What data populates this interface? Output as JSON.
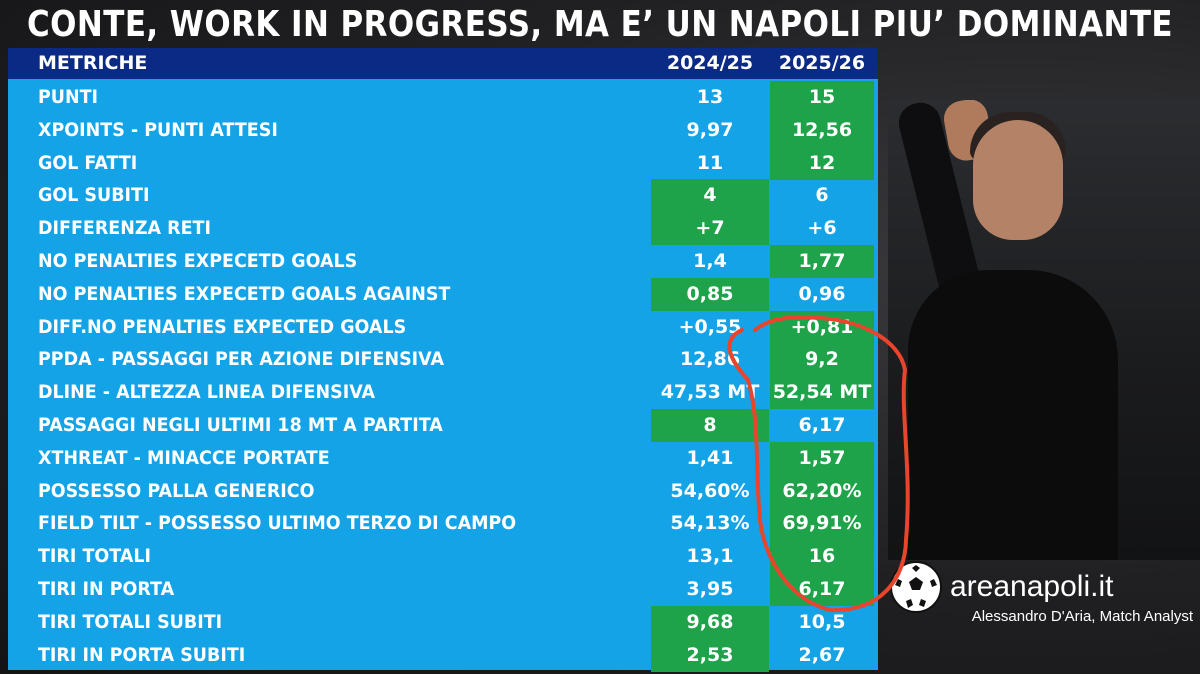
{
  "title": "CONTE, WORK IN PROGRESS, MA E’ UN NAPOLI PIU’ DOMINANTE",
  "table": {
    "headers": [
      "METRICHE",
      "2024/25",
      "2025/26"
    ],
    "rows": [
      {
        "label": "PUNTI",
        "a": "13",
        "b": "15",
        "winner": "b"
      },
      {
        "label": "XPOINTS - PUNTI ATTESI",
        "a": "9,97",
        "b": "12,56",
        "winner": "b"
      },
      {
        "label": "GOL FATTI",
        "a": "11",
        "b": "12",
        "winner": "b"
      },
      {
        "label": "GOL SUBITI",
        "a": "4",
        "b": "6",
        "winner": "a"
      },
      {
        "label": "DIFFERENZA RETI",
        "a": "+7",
        "b": "+6",
        "winner": "a"
      },
      {
        "label": "NO PENALTIES EXPECETD GOALS",
        "a": "1,4",
        "b": "1,77",
        "winner": "b"
      },
      {
        "label": "NO PENALTIES EXPECETD GOALS AGAINST",
        "a": "0,85",
        "b": "0,96",
        "winner": "a"
      },
      {
        "label": "DIFF.NO PENALTIES EXPECTED GOALS",
        "a": "+0,55",
        "b": "+0,81",
        "winner": "b"
      },
      {
        "label": "PPDA - PASSAGGI PER AZIONE DIFENSIVA",
        "a": "12,86",
        "b": "9,2",
        "winner": "b"
      },
      {
        "label": "DLINE - ALTEZZA LINEA DIFENSIVA",
        "a": "47,53 MT",
        "b": "52,54 MT",
        "winner": "b"
      },
      {
        "label": "PASSAGGI NEGLI ULTIMI 18 MT A PARTITA",
        "a": "8",
        "b": "6,17",
        "winner": "a"
      },
      {
        "label": "XTHREAT - MINACCE PORTATE",
        "a": "1,41",
        "b": "1,57",
        "winner": "b"
      },
      {
        "label": "POSSESSO PALLA GENERICO",
        "a": "54,60%",
        "b": "62,20%",
        "winner": "b"
      },
      {
        "label": "FIELD TILT - POSSESSO ULTIMO TERZO DI CAMPO",
        "a": "54,13%",
        "b": "69,91%",
        "winner": "b"
      },
      {
        "label": "TIRI TOTALI",
        "a": "13,1",
        "b": "16",
        "winner": "b"
      },
      {
        "label": "TIRI IN PORTA",
        "a": "3,95",
        "b": "6,17",
        "winner": "b"
      },
      {
        "label": "TIRI TOTALI SUBITI",
        "a": "9,68",
        "b": "10,5",
        "winner": "a"
      },
      {
        "label": "TIRI IN PORTA SUBITI",
        "a": "2,53",
        "b": "2,67",
        "winner": "a"
      }
    ]
  },
  "brand": "areanapoli.it",
  "credit": "Alessandro D'Aria, Match Analyst",
  "colors": {
    "table_bg": "#14a3e6",
    "header_bg": "#0b2a86",
    "winner_bg": "#1fa34a",
    "annotation": "#e8452c"
  }
}
